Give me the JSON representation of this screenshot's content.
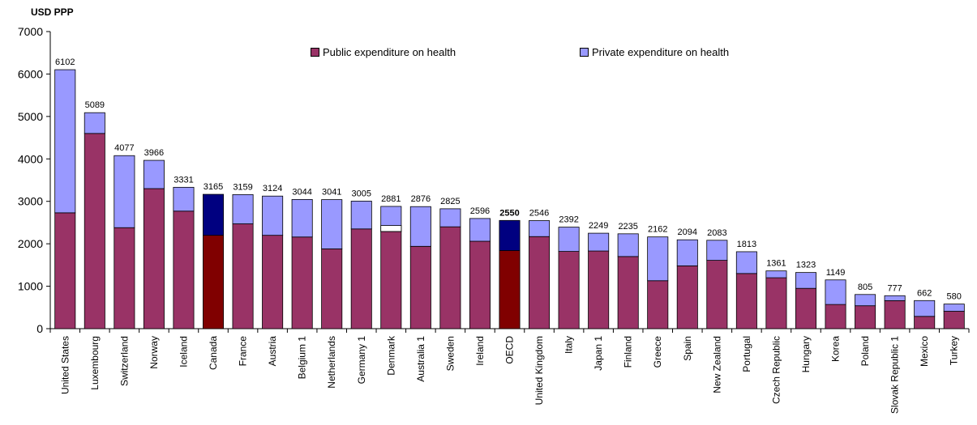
{
  "chart_data": {
    "type": "bar",
    "stacked": true,
    "ylabel": "USD PPP",
    "ylim": [
      0,
      7000
    ],
    "yticks": [
      0,
      1000,
      2000,
      3000,
      4000,
      5000,
      6000,
      7000
    ],
    "grid": false,
    "legend_position": "top",
    "categories": [
      "United States",
      "Luxembourg",
      "Switzerland",
      "Norway",
      "Iceland",
      "Canada",
      "France",
      "Austria",
      "Belgium 1",
      "Netherlands",
      "Germany 1",
      "Denmark",
      "Australia 1",
      "Sweden",
      "Ireland",
      "OECD",
      "United Kingdom",
      "Italy",
      "Japan 1",
      "Finland",
      "Greece",
      "Spain",
      "New Zealand",
      "Portugal",
      "Czech Republic",
      "Hungary",
      "Korea",
      "Poland",
      "Slovak Republic 1",
      "Mexico",
      "Turkey"
    ],
    "totals": [
      "6102",
      "5089",
      "4077",
      "3966",
      "3331",
      "3165",
      "3159",
      "3124",
      "3044",
      "3041",
      "3005",
      "2881",
      "2876",
      "2825",
      "2596",
      "2550",
      "2546",
      "2392",
      "2249",
      "2235",
      "2162",
      "2094",
      "2083",
      "1813",
      "1361",
      "1323",
      "1149",
      "805",
      "777",
      "662",
      "580"
    ],
    "series": [
      {
        "name": "Public expenditure on health",
        "color": "#993366",
        "values": [
          2730,
          4600,
          2380,
          3300,
          2770,
          2200,
          2470,
          2200,
          2160,
          1880,
          2350,
          2290,
          1940,
          2400,
          2060,
          1840,
          2170,
          1820,
          1830,
          1700,
          1130,
          1480,
          1610,
          1300,
          1200,
          950,
          570,
          540,
          660,
          290,
          410
        ]
      },
      {
        "name": "Private expenditure on health",
        "color": "#9999ff",
        "values": [
          3372,
          489,
          1697,
          666,
          561,
          965,
          689,
          924,
          884,
          1161,
          655,
          591,
          936,
          425,
          536,
          710,
          376,
          572,
          419,
          535,
          1032,
          614,
          473,
          513,
          161,
          373,
          579,
          265,
          117,
          372,
          170
        ]
      }
    ],
    "highlight": {
      "categories": [
        "Canada",
        "OECD"
      ],
      "public_color": "#800000",
      "private_color": "#000080"
    },
    "special_segment": {
      "category": "Denmark",
      "from": 2290,
      "to": 2430,
      "color": "#ffffff"
    },
    "bold_total_categories": [
      "OECD"
    ]
  }
}
